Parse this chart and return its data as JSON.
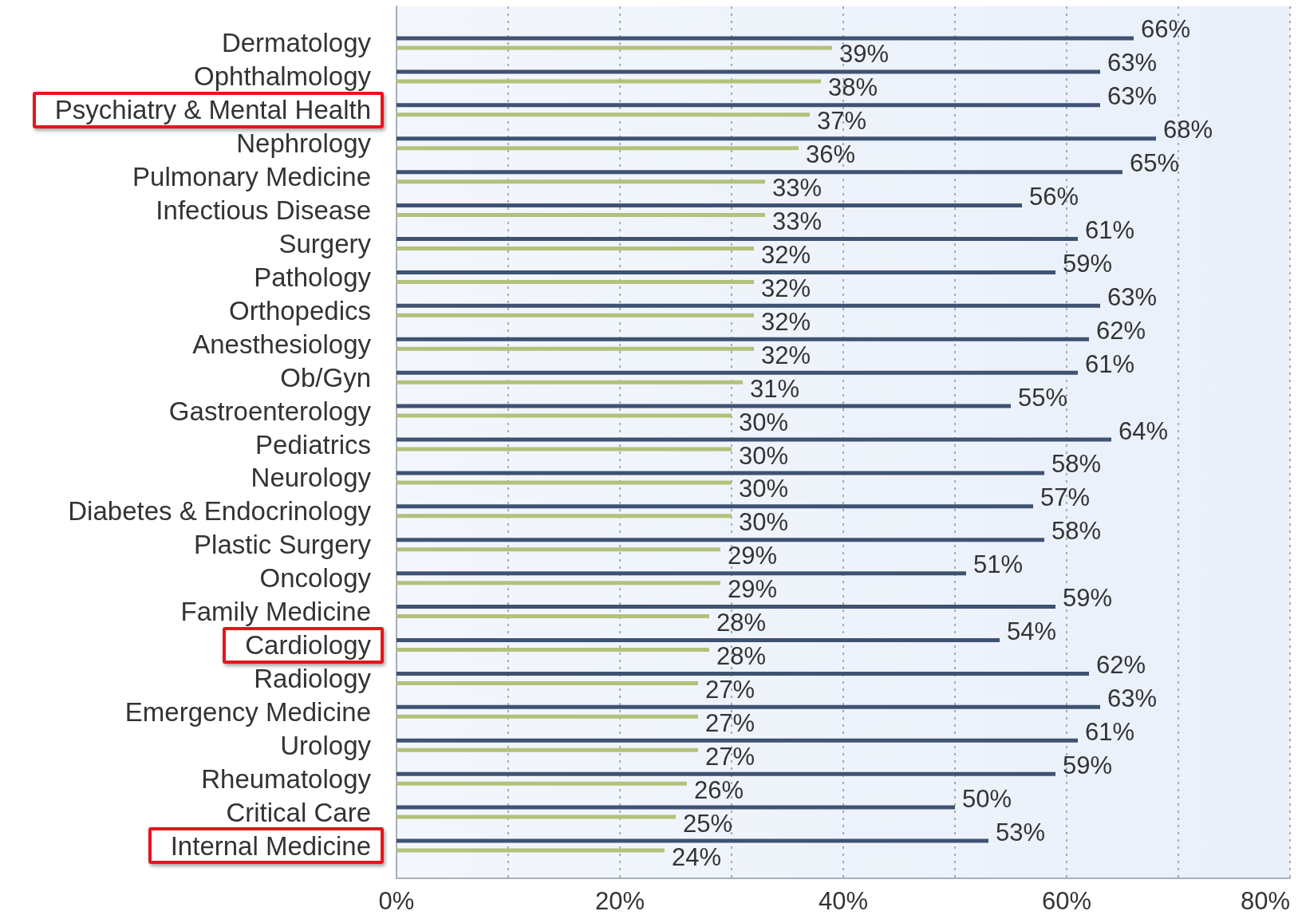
{
  "chart_data": {
    "type": "bar",
    "orientation": "horizontal",
    "categories": [
      "Dermatology",
      "Ophthalmology",
      "Psychiatry & Mental Health",
      "Nephrology",
      "Pulmonary Medicine",
      "Infectious Disease",
      "Surgery",
      "Pathology",
      "Orthopedics",
      "Anesthesiology",
      "Ob/Gyn",
      "Gastroenterology",
      "Pediatrics",
      "Neurology",
      "Diabetes & Endocrinology",
      "Plastic Surgery",
      "Oncology",
      "Family Medicine",
      "Cardiology",
      "Radiology",
      "Emergency Medicine",
      "Urology",
      "Rheumatology",
      "Critical Care",
      "Internal Medicine"
    ],
    "series": [
      {
        "color": "#3f5272",
        "values": [
          66,
          63,
          63,
          68,
          65,
          56,
          61,
          59,
          63,
          62,
          61,
          55,
          64,
          58,
          57,
          58,
          51,
          59,
          54,
          62,
          63,
          61,
          59,
          50,
          53
        ],
        "value_labels": [
          "66%",
          "63%",
          "63%",
          "68%",
          "65%",
          "56%",
          "61%",
          "59%",
          "63%",
          "62%",
          "61%",
          "55%",
          "64%",
          "58%",
          "57%",
          "58%",
          "51%",
          "59%",
          "54%",
          "62%",
          "63%",
          "61%",
          "59%",
          "50%",
          "53%"
        ]
      },
      {
        "color": "#b3c17b",
        "values": [
          39,
          38,
          37,
          36,
          33,
          33,
          32,
          32,
          32,
          32,
          31,
          30,
          30,
          30,
          30,
          29,
          29,
          28,
          28,
          27,
          27,
          27,
          26,
          25,
          24
        ],
        "value_labels": [
          "39%",
          "38%",
          "37%",
          "36%",
          "33%",
          "33%",
          "32%",
          "32%",
          "32%",
          "32%",
          "31%",
          "30%",
          "30%",
          "30%",
          "30%",
          "29%",
          "29%",
          "28%",
          "28%",
          "27%",
          "27%",
          "27%",
          "26%",
          "25%",
          "24%"
        ]
      }
    ],
    "xlim": [
      0,
      80
    ],
    "xticks": [
      {
        "value": 0,
        "label": "0%"
      },
      {
        "value": 10,
        "label": null
      },
      {
        "value": 20,
        "label": "20%"
      },
      {
        "value": 30,
        "label": null
      },
      {
        "value": 40,
        "label": "40%"
      },
      {
        "value": 50,
        "label": null
      },
      {
        "value": 60,
        "label": "60%"
      },
      {
        "value": 70,
        "label": null
      },
      {
        "value": 80,
        "label": "80%"
      }
    ],
    "grid": "x"
  }
}
